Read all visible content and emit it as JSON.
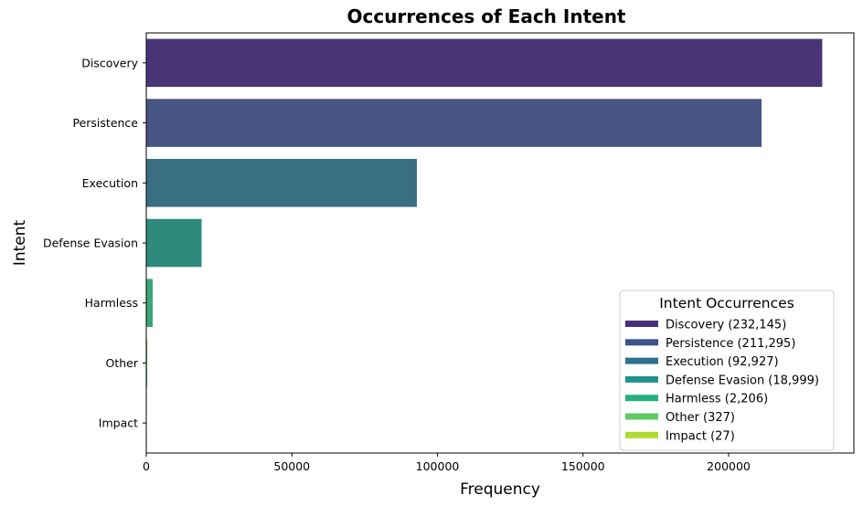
{
  "chart_data": {
    "type": "bar",
    "orientation": "horizontal",
    "title": "Occurrences of Each Intent",
    "xlabel": "Frequency",
    "ylabel": "Intent",
    "xlim": [
      0,
      243000
    ],
    "xticks": [
      0,
      50000,
      100000,
      150000,
      200000
    ],
    "xtick_labels": [
      "0",
      "50000",
      "100000",
      "150000",
      "200000"
    ],
    "grid": false,
    "categories": [
      "Discovery",
      "Persistence",
      "Execution",
      "Defense Evasion",
      "Harmless",
      "Other",
      "Impact"
    ],
    "values": [
      232145,
      211295,
      92927,
      18999,
      2206,
      327,
      27
    ],
    "colors": [
      "#4a3478",
      "#465584",
      "#396f80",
      "#2e8a7d",
      "#38a77a",
      "#4dc25e",
      "#a8d42a"
    ],
    "legend": {
      "title": "Intent Occurrences",
      "placement": "lower-right",
      "entries": [
        {
          "label": "Discovery (232,145)",
          "color": "#482f7a"
        },
        {
          "label": "Persistence (211,295)",
          "color": "#3b528b"
        },
        {
          "label": "Execution (92,927)",
          "color": "#2c718e"
        },
        {
          "label": "Defense Evasion (18,999)",
          "color": "#21918c"
        },
        {
          "label": "Harmless (2,206)",
          "color": "#28ae80"
        },
        {
          "label": "Other (327)",
          "color": "#5ec962"
        },
        {
          "label": "Impact (27)",
          "color": "#addc30"
        }
      ]
    }
  }
}
